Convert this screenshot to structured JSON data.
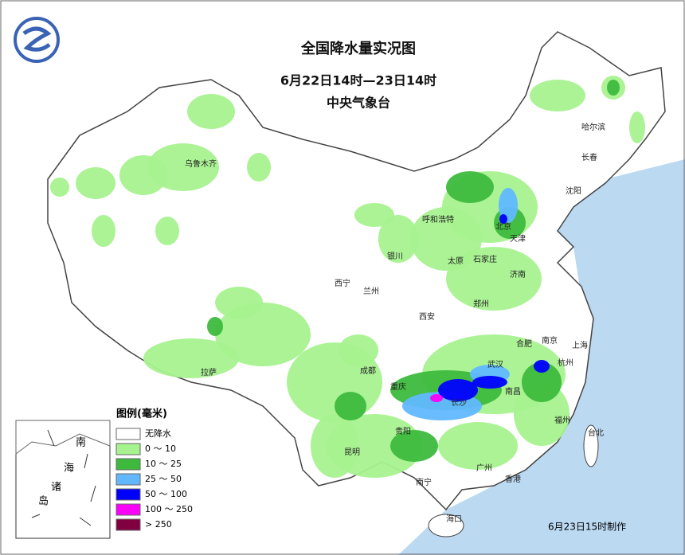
{
  "header": {
    "title": "全国降水量实况图",
    "period": "6月22日14时—23日14时",
    "agency": "中央气象台"
  },
  "legend": {
    "title": "图例(毫米)",
    "items": [
      {
        "label": "无降水",
        "color": "#ffffff"
      },
      {
        "label": "0 ～ 10",
        "color": "#a6f28f"
      },
      {
        "label": "10 ～ 25",
        "color": "#3dba3d"
      },
      {
        "label": "25 ～ 50",
        "color": "#61b8ff"
      },
      {
        "label": "50 ～ 100",
        "color": "#0000fe"
      },
      {
        "label": "100 ～ 250",
        "color": "#fa00fa"
      },
      {
        "label": "> 250",
        "color": "#800040"
      }
    ]
  },
  "cities": [
    "乌鲁木齐",
    "哈尔滨",
    "长春",
    "沈阳",
    "呼和浩特",
    "北京",
    "天津",
    "银川",
    "太原",
    "石家庄",
    "济南",
    "西宁",
    "兰州",
    "西安",
    "郑州",
    "合肥",
    "南京",
    "上海",
    "武汉",
    "杭州",
    "成都",
    "重庆",
    "长沙",
    "南昌",
    "拉萨",
    "贵阳",
    "昆明",
    "福州",
    "台北",
    "南宁",
    "广州",
    "香港",
    "海口"
  ],
  "inset": {
    "labels": [
      "南",
      "海",
      "诸",
      "岛"
    ]
  },
  "footer": "6月23日15时制作"
}
